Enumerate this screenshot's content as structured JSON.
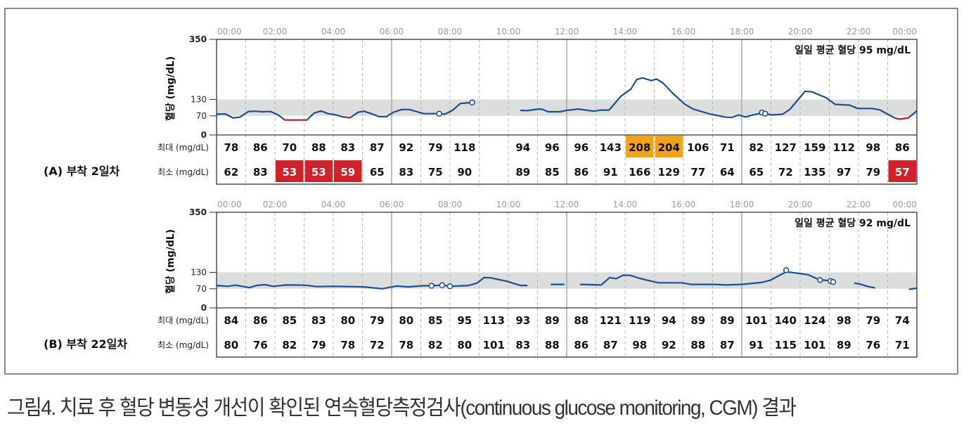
{
  "caption": "그림4. 치료 후 혈당 변동성 개선이 확인된 연속혈당측정검사(continuous glucose monitoring, CGM) 결과",
  "colors": {
    "line": "#1b4f8f",
    "low": "#d0222b",
    "high": "#f0a31a",
    "target_band": "#dcdddd",
    "grid": "#b5b5b5",
    "frame": "#333333",
    "time_label": "#9a9a9a"
  },
  "row_labels": {
    "max": "최대 (mg/dL)",
    "min": "최소 (mg/dL)"
  },
  "chart_data": [
    {
      "type": "line",
      "title": "(A) 부착 2일차",
      "ylabel": "혈당 (mg/dL)",
      "ylim": [
        0,
        350
      ],
      "yticks": [
        0,
        70,
        130,
        350
      ],
      "target_range": [
        70,
        130
      ],
      "xlim_hours": [
        0,
        24
      ],
      "xtick_labels": [
        "00:00",
        "02:00",
        "04:00",
        "06:00",
        "08:00",
        "10:00",
        "12:00",
        "14:00",
        "16:00",
        "18:00",
        "20:00",
        "22:00",
        "00:00"
      ],
      "grid": "dashed hourly vertical lines; solid at 06:00, 12:00, 18:00",
      "mean_label": "일일 평균 혈당  95 mg/dL",
      "segments": [
        [
          [
            0,
            76
          ],
          [
            0.3,
            77
          ],
          [
            0.57,
            62
          ],
          [
            0.8,
            65
          ],
          [
            1.09,
            86
          ],
          [
            1.33,
            87
          ],
          [
            1.57,
            85
          ],
          [
            1.85,
            86
          ],
          [
            2.1,
            74
          ],
          [
            2.34,
            55
          ],
          [
            3.1,
            55
          ],
          [
            3.34,
            80
          ],
          [
            3.58,
            88
          ],
          [
            3.82,
            78
          ],
          [
            4.06,
            74
          ],
          [
            4.34,
            66
          ],
          [
            4.58,
            63
          ],
          [
            4.85,
            83
          ],
          [
            5.05,
            87
          ],
          [
            5.33,
            77
          ],
          [
            5.57,
            67
          ],
          [
            5.82,
            67
          ],
          [
            6.06,
            83
          ],
          [
            6.34,
            93
          ],
          [
            6.62,
            93
          ],
          [
            7.1,
            78
          ],
          [
            7.63,
            78
          ],
          [
            7.83,
            76
          ],
          [
            8.1,
            91
          ],
          [
            8.35,
            115
          ],
          [
            8.55,
            117
          ],
          [
            8.76,
            119
          ]
        ],
        [
          [
            10.41,
            90
          ],
          [
            10.65,
            89
          ],
          [
            10.97,
            94
          ],
          [
            11.13,
            95
          ],
          [
            11.37,
            85
          ],
          [
            11.77,
            85
          ],
          [
            12.0,
            90
          ],
          [
            12.4,
            95
          ],
          [
            12.93,
            87
          ],
          [
            13.17,
            91
          ],
          [
            13.45,
            91
          ],
          [
            13.86,
            142
          ],
          [
            14.2,
            168
          ],
          [
            14.4,
            203
          ],
          [
            14.6,
            209
          ],
          [
            14.9,
            199
          ],
          [
            15.08,
            205
          ],
          [
            15.3,
            190
          ],
          [
            15.64,
            152
          ],
          [
            16.04,
            113
          ],
          [
            16.33,
            95
          ],
          [
            16.93,
            76
          ],
          [
            17.45,
            65
          ],
          [
            17.65,
            64
          ],
          [
            17.89,
            73
          ],
          [
            18.13,
            66
          ],
          [
            18.41,
            74
          ],
          [
            18.69,
            80
          ],
          [
            18.8,
            78
          ],
          [
            19.02,
            73
          ],
          [
            19.4,
            76
          ],
          [
            19.65,
            94
          ],
          [
            20.17,
            160
          ],
          [
            20.4,
            158
          ],
          [
            20.9,
            136
          ],
          [
            21.2,
            112
          ],
          [
            21.7,
            109
          ],
          [
            21.97,
            97
          ],
          [
            22.45,
            97
          ],
          [
            22.73,
            92
          ],
          [
            23.0,
            76
          ],
          [
            23.25,
            62
          ],
          [
            23.4,
            58
          ],
          [
            23.7,
            62
          ],
          [
            24,
            88
          ]
        ]
      ],
      "low_ranges_hours": [
        [
          2.3,
          3.12
        ],
        [
          4.4,
          4.62
        ],
        [
          23.3,
          23.75
        ]
      ],
      "markers": [
        [
          7.63,
          78
        ],
        [
          8.76,
          119
        ],
        [
          18.69,
          82
        ],
        [
          18.8,
          78
        ]
      ],
      "table": {
        "max": [
          "78",
          "86",
          "70",
          "88",
          "83",
          "87",
          "92",
          "79",
          "118",
          "",
          "94",
          "96",
          "96",
          "143",
          "208",
          "204",
          "106",
          "71",
          "82",
          "127",
          "159",
          "112",
          "98",
          "86"
        ],
        "min": [
          "62",
          "83",
          "53",
          "53",
          "59",
          "65",
          "83",
          "75",
          "90",
          "",
          "89",
          "85",
          "86",
          "91",
          "166",
          "129",
          "77",
          "64",
          "65",
          "72",
          "135",
          "97",
          "79",
          "57"
        ],
        "max_high_hours": [
          14,
          15
        ],
        "min_low_hours": [
          2,
          3,
          4,
          23
        ]
      }
    },
    {
      "type": "line",
      "title": "(B) 부착 22일차",
      "ylabel": "혈당 (mg/dL)",
      "ylim": [
        0,
        350
      ],
      "yticks": [
        0,
        70,
        130,
        350
      ],
      "target_range": [
        70,
        130
      ],
      "xlim_hours": [
        0,
        24
      ],
      "xtick_labels": [
        "00:00",
        "02:00",
        "04:00",
        "06:00",
        "08:00",
        "10:00",
        "12:00",
        "14:00",
        "16:00",
        "18:00",
        "20:00",
        "22:00",
        "00:00"
      ],
      "grid": "dashed hourly vertical lines; solid at 06:00, 12:00, 18:00",
      "mean_label": "일일 평균 혈당  92 mg/dL",
      "segments": [
        [
          [
            0,
            82
          ],
          [
            0.37,
            79
          ],
          [
            0.65,
            83
          ],
          [
            1.13,
            74
          ],
          [
            1.37,
            82
          ],
          [
            1.65,
            85
          ],
          [
            1.95,
            79
          ],
          [
            2.39,
            84
          ],
          [
            3.03,
            83
          ],
          [
            3.43,
            78
          ],
          [
            4.0,
            79
          ],
          [
            5.04,
            77
          ],
          [
            5.68,
            70
          ],
          [
            6.17,
            80
          ],
          [
            6.57,
            77
          ],
          [
            7.05,
            81
          ],
          [
            7.37,
            81
          ],
          [
            7.73,
            83
          ],
          [
            8.0,
            79
          ],
          [
            8.65,
            82
          ],
          [
            8.93,
            91
          ],
          [
            9.17,
            111
          ],
          [
            9.41,
            110
          ],
          [
            9.7,
            103
          ],
          [
            9.93,
            98
          ],
          [
            10.41,
            82
          ],
          [
            10.65,
            82
          ]
        ],
        [
          [
            11.45,
            86
          ],
          [
            11.92,
            86
          ]
        ],
        [
          [
            12.46,
            86
          ],
          [
            13.18,
            84
          ],
          [
            13.47,
            111
          ],
          [
            13.7,
            107
          ],
          [
            13.94,
            120
          ],
          [
            14.18,
            119
          ],
          [
            14.5,
            108
          ],
          [
            14.74,
            102
          ],
          [
            15.14,
            92
          ],
          [
            15.62,
            92
          ],
          [
            15.94,
            92
          ],
          [
            16.26,
            86
          ],
          [
            17.06,
            86
          ],
          [
            17.46,
            84
          ],
          [
            17.98,
            86
          ],
          [
            18.67,
            93
          ],
          [
            18.99,
            102
          ],
          [
            19.52,
            132
          ],
          [
            20.04,
            125
          ],
          [
            20.28,
            121
          ],
          [
            20.68,
            102
          ],
          [
            20.92,
            101
          ],
          [
            21.04,
            98
          ],
          [
            21.13,
            95
          ]
        ],
        [
          [
            21.85,
            91
          ],
          [
            22.09,
            86
          ],
          [
            22.33,
            78
          ],
          [
            22.57,
            73
          ]
        ],
        [
          [
            23.73,
            68
          ],
          [
            24,
            72
          ]
        ]
      ],
      "low_ranges_hours": [],
      "markers": [
        [
          7.37,
          81
        ],
        [
          7.73,
          83
        ],
        [
          8.0,
          79
        ],
        [
          19.52,
          138
        ],
        [
          20.68,
          102
        ],
        [
          21.04,
          98
        ],
        [
          21.13,
          95
        ]
      ],
      "table": {
        "max": [
          "84",
          "86",
          "85",
          "83",
          "80",
          "79",
          "80",
          "85",
          "95",
          "113",
          "93",
          "89",
          "88",
          "121",
          "119",
          "94",
          "89",
          "89",
          "101",
          "140",
          "124",
          "98",
          "79",
          "74"
        ],
        "min": [
          "80",
          "76",
          "82",
          "79",
          "78",
          "72",
          "78",
          "82",
          "80",
          "101",
          "83",
          "88",
          "86",
          "87",
          "98",
          "92",
          "88",
          "87",
          "91",
          "115",
          "101",
          "89",
          "76",
          "71"
        ],
        "max_high_hours": [],
        "min_low_hours": []
      }
    }
  ]
}
